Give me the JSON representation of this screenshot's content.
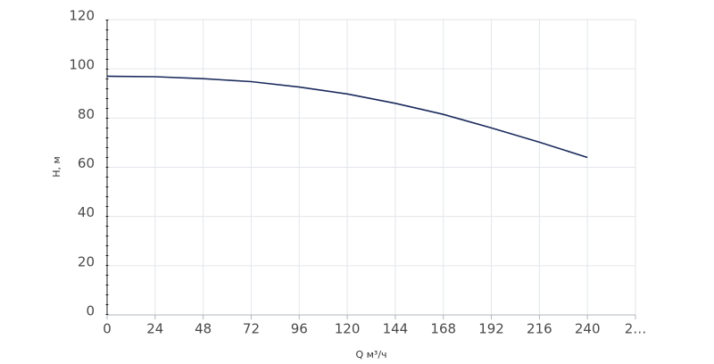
{
  "chart_data": {
    "type": "line",
    "x_label": "Q м³/ч",
    "y_label": "H, м",
    "x": [
      0,
      24,
      48,
      72,
      96,
      120,
      144,
      168,
      192,
      216,
      240
    ],
    "series": [
      {
        "name": "H",
        "color": "#1b2a5c",
        "values": [
          97,
          96.8,
          96,
          94.8,
          92.6,
          89.8,
          86,
          81.5,
          76,
          70.2,
          64
        ]
      }
    ],
    "xlim": [
      0,
      264
    ],
    "ylim": [
      0,
      120
    ],
    "xticks": [
      0,
      24,
      48,
      72,
      96,
      120,
      144,
      168,
      192,
      216,
      240,
      {
        "value": 264,
        "label": "2…"
      }
    ],
    "yticks": [
      0,
      20,
      40,
      60,
      80,
      100,
      120
    ],
    "grid": true
  }
}
